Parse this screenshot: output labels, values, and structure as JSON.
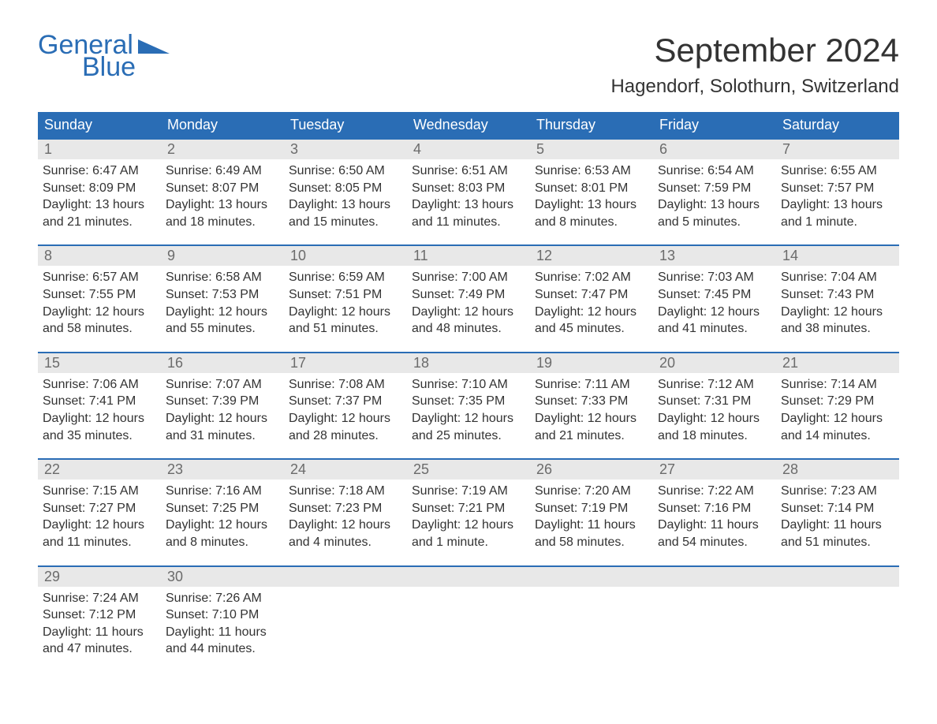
{
  "brand": {
    "part1": "General",
    "part2": "Blue"
  },
  "title": "September 2024",
  "location": "Hagendorf, Solothurn, Switzerland",
  "colors": {
    "header_bg": "#2a6db5",
    "header_text": "#ffffff",
    "daynum_bg": "#e8e8e8",
    "daynum_text": "#6b6b6b",
    "body_text": "#333333",
    "week_border": "#2a6db5",
    "background": "#ffffff"
  },
  "typography": {
    "title_fontsize": 42,
    "location_fontsize": 24,
    "weekday_fontsize": 18,
    "daynum_fontsize": 18,
    "body_fontsize": 16,
    "font_family": "Arial"
  },
  "layout": {
    "columns": 7,
    "rows": 5
  },
  "weekdays": [
    "Sunday",
    "Monday",
    "Tuesday",
    "Wednesday",
    "Thursday",
    "Friday",
    "Saturday"
  ],
  "days": [
    {
      "n": "1",
      "sunrise": "Sunrise: 6:47 AM",
      "sunset": "Sunset: 8:09 PM",
      "d1": "Daylight: 13 hours",
      "d2": "and 21 minutes."
    },
    {
      "n": "2",
      "sunrise": "Sunrise: 6:49 AM",
      "sunset": "Sunset: 8:07 PM",
      "d1": "Daylight: 13 hours",
      "d2": "and 18 minutes."
    },
    {
      "n": "3",
      "sunrise": "Sunrise: 6:50 AM",
      "sunset": "Sunset: 8:05 PM",
      "d1": "Daylight: 13 hours",
      "d2": "and 15 minutes."
    },
    {
      "n": "4",
      "sunrise": "Sunrise: 6:51 AM",
      "sunset": "Sunset: 8:03 PM",
      "d1": "Daylight: 13 hours",
      "d2": "and 11 minutes."
    },
    {
      "n": "5",
      "sunrise": "Sunrise: 6:53 AM",
      "sunset": "Sunset: 8:01 PM",
      "d1": "Daylight: 13 hours",
      "d2": "and 8 minutes."
    },
    {
      "n": "6",
      "sunrise": "Sunrise: 6:54 AM",
      "sunset": "Sunset: 7:59 PM",
      "d1": "Daylight: 13 hours",
      "d2": "and 5 minutes."
    },
    {
      "n": "7",
      "sunrise": "Sunrise: 6:55 AM",
      "sunset": "Sunset: 7:57 PM",
      "d1": "Daylight: 13 hours",
      "d2": "and 1 minute."
    },
    {
      "n": "8",
      "sunrise": "Sunrise: 6:57 AM",
      "sunset": "Sunset: 7:55 PM",
      "d1": "Daylight: 12 hours",
      "d2": "and 58 minutes."
    },
    {
      "n": "9",
      "sunrise": "Sunrise: 6:58 AM",
      "sunset": "Sunset: 7:53 PM",
      "d1": "Daylight: 12 hours",
      "d2": "and 55 minutes."
    },
    {
      "n": "10",
      "sunrise": "Sunrise: 6:59 AM",
      "sunset": "Sunset: 7:51 PM",
      "d1": "Daylight: 12 hours",
      "d2": "and 51 minutes."
    },
    {
      "n": "11",
      "sunrise": "Sunrise: 7:00 AM",
      "sunset": "Sunset: 7:49 PM",
      "d1": "Daylight: 12 hours",
      "d2": "and 48 minutes."
    },
    {
      "n": "12",
      "sunrise": "Sunrise: 7:02 AM",
      "sunset": "Sunset: 7:47 PM",
      "d1": "Daylight: 12 hours",
      "d2": "and 45 minutes."
    },
    {
      "n": "13",
      "sunrise": "Sunrise: 7:03 AM",
      "sunset": "Sunset: 7:45 PM",
      "d1": "Daylight: 12 hours",
      "d2": "and 41 minutes."
    },
    {
      "n": "14",
      "sunrise": "Sunrise: 7:04 AM",
      "sunset": "Sunset: 7:43 PM",
      "d1": "Daylight: 12 hours",
      "d2": "and 38 minutes."
    },
    {
      "n": "15",
      "sunrise": "Sunrise: 7:06 AM",
      "sunset": "Sunset: 7:41 PM",
      "d1": "Daylight: 12 hours",
      "d2": "and 35 minutes."
    },
    {
      "n": "16",
      "sunrise": "Sunrise: 7:07 AM",
      "sunset": "Sunset: 7:39 PM",
      "d1": "Daylight: 12 hours",
      "d2": "and 31 minutes."
    },
    {
      "n": "17",
      "sunrise": "Sunrise: 7:08 AM",
      "sunset": "Sunset: 7:37 PM",
      "d1": "Daylight: 12 hours",
      "d2": "and 28 minutes."
    },
    {
      "n": "18",
      "sunrise": "Sunrise: 7:10 AM",
      "sunset": "Sunset: 7:35 PM",
      "d1": "Daylight: 12 hours",
      "d2": "and 25 minutes."
    },
    {
      "n": "19",
      "sunrise": "Sunrise: 7:11 AM",
      "sunset": "Sunset: 7:33 PM",
      "d1": "Daylight: 12 hours",
      "d2": "and 21 minutes."
    },
    {
      "n": "20",
      "sunrise": "Sunrise: 7:12 AM",
      "sunset": "Sunset: 7:31 PM",
      "d1": "Daylight: 12 hours",
      "d2": "and 18 minutes."
    },
    {
      "n": "21",
      "sunrise": "Sunrise: 7:14 AM",
      "sunset": "Sunset: 7:29 PM",
      "d1": "Daylight: 12 hours",
      "d2": "and 14 minutes."
    },
    {
      "n": "22",
      "sunrise": "Sunrise: 7:15 AM",
      "sunset": "Sunset: 7:27 PM",
      "d1": "Daylight: 12 hours",
      "d2": "and 11 minutes."
    },
    {
      "n": "23",
      "sunrise": "Sunrise: 7:16 AM",
      "sunset": "Sunset: 7:25 PM",
      "d1": "Daylight: 12 hours",
      "d2": "and 8 minutes."
    },
    {
      "n": "24",
      "sunrise": "Sunrise: 7:18 AM",
      "sunset": "Sunset: 7:23 PM",
      "d1": "Daylight: 12 hours",
      "d2": "and 4 minutes."
    },
    {
      "n": "25",
      "sunrise": "Sunrise: 7:19 AM",
      "sunset": "Sunset: 7:21 PM",
      "d1": "Daylight: 12 hours",
      "d2": "and 1 minute."
    },
    {
      "n": "26",
      "sunrise": "Sunrise: 7:20 AM",
      "sunset": "Sunset: 7:19 PM",
      "d1": "Daylight: 11 hours",
      "d2": "and 58 minutes."
    },
    {
      "n": "27",
      "sunrise": "Sunrise: 7:22 AM",
      "sunset": "Sunset: 7:16 PM",
      "d1": "Daylight: 11 hours",
      "d2": "and 54 minutes."
    },
    {
      "n": "28",
      "sunrise": "Sunrise: 7:23 AM",
      "sunset": "Sunset: 7:14 PM",
      "d1": "Daylight: 11 hours",
      "d2": "and 51 minutes."
    },
    {
      "n": "29",
      "sunrise": "Sunrise: 7:24 AM",
      "sunset": "Sunset: 7:12 PM",
      "d1": "Daylight: 11 hours",
      "d2": "and 47 minutes."
    },
    {
      "n": "30",
      "sunrise": "Sunrise: 7:26 AM",
      "sunset": "Sunset: 7:10 PM",
      "d1": "Daylight: 11 hours",
      "d2": "and 44 minutes."
    }
  ]
}
